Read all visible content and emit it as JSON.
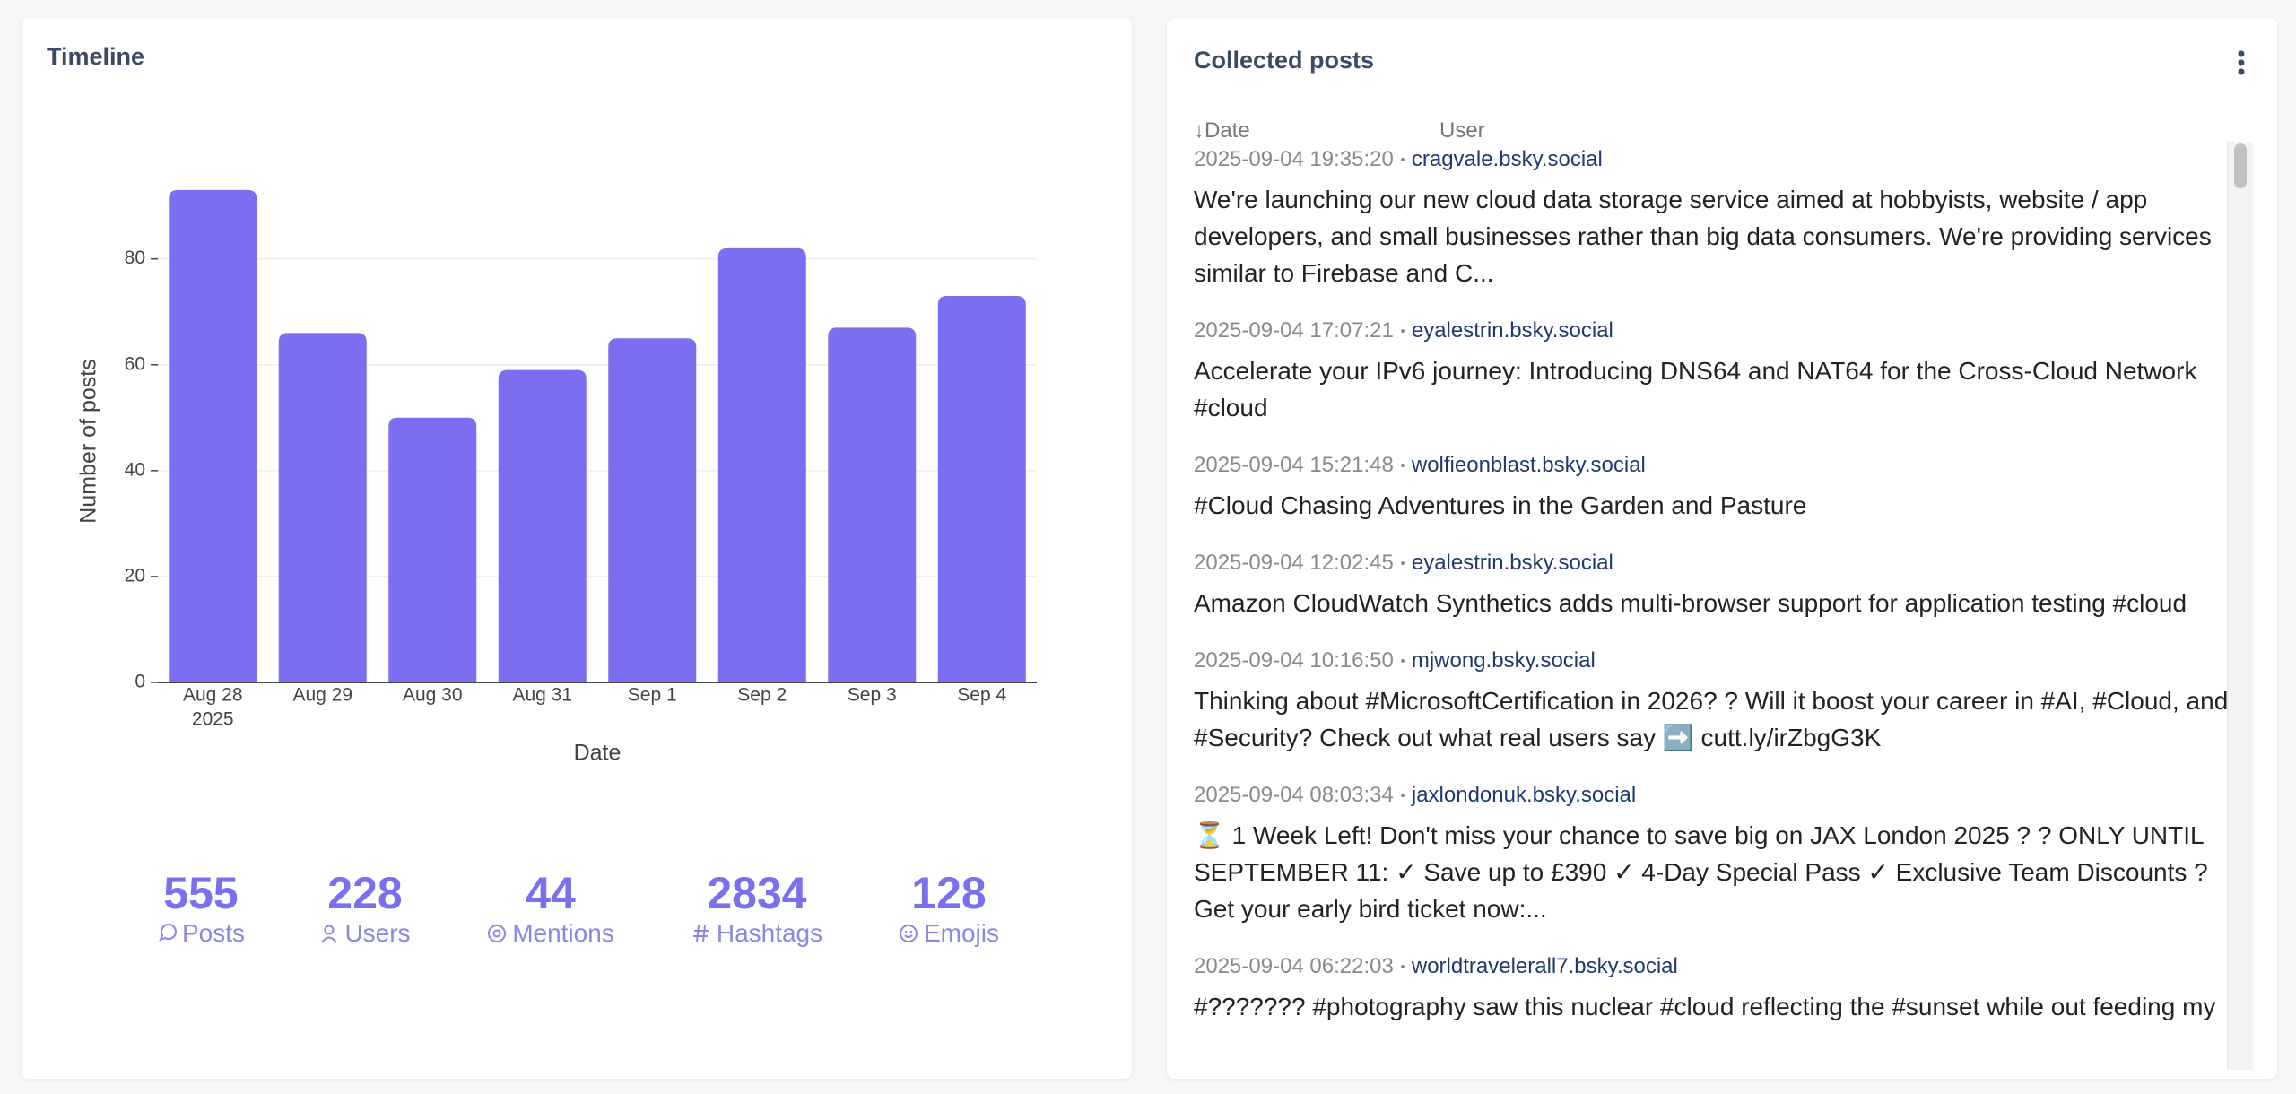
{
  "chart_data": {
    "type": "bar",
    "title": "Timeline",
    "x_label": "Date",
    "y_label": "Number of posts",
    "categories": [
      "Aug 28",
      "Aug 29",
      "Aug 30",
      "Aug 31",
      "Sep 1",
      "Sep 2",
      "Sep 3",
      "Sep 4"
    ],
    "first_category_year": "2025",
    "values": [
      93,
      66,
      50,
      59,
      65,
      82,
      67,
      73
    ],
    "color": "#7b6ef0",
    "ylim": [
      0,
      97.9
    ],
    "yticks": [
      0,
      20,
      40,
      60,
      80
    ],
    "grid": true
  },
  "stats": [
    {
      "value": "555",
      "label": "Posts"
    },
    {
      "value": "228",
      "label": "Users"
    },
    {
      "value": "44",
      "label": "Mentions"
    },
    {
      "value": "2834",
      "label": "Hashtags"
    },
    {
      "value": "128",
      "label": "Emojis"
    }
  ],
  "posts_panel": {
    "title": "Collected posts",
    "columns": [
      "↓Date",
      "User"
    ],
    "posts": [
      {
        "date": "2025-09-04 19:35:20",
        "user": "cragvale.bsky.social",
        "text": "We're launching our new cloud data storage service aimed at hobbyists, website / app developers, and small businesses rather than big data consumers. We're providing services similar to Firebase and C..."
      },
      {
        "date": "2025-09-04 17:07:21",
        "user": "eyalestrin.bsky.social",
        "text": "Accelerate your IPv6 journey: Introducing DNS64 and NAT64 for the Cross-Cloud Network #cloud"
      },
      {
        "date": "2025-09-04 15:21:48",
        "user": "wolfieonblast.bsky.social",
        "text": "#Cloud Chasing Adventures in the Garden and Pasture"
      },
      {
        "date": "2025-09-04 12:02:45",
        "user": "eyalestrin.bsky.social",
        "text": "Amazon CloudWatch Synthetics adds multi-browser support for application testing #cloud"
      },
      {
        "date": "2025-09-04 10:16:50",
        "user": "mjwong.bsky.social",
        "text": "Thinking about #MicrosoftCertification in 2026? ? Will it boost your career in #AI, #Cloud, and #Security? Check out what real users say ➡️ cutt.ly/irZbgG3K"
      },
      {
        "date": "2025-09-04 08:03:34",
        "user": "jaxlondonuk.bsky.social",
        "text": "⏳ 1 Week Left! Don't miss your chance to save big on JAX London 2025 ? ? ONLY UNTIL SEPTEMBER 11: ✓ Save up to £390 ✓ 4-Day Special Pass ✓ Exclusive Team Discounts ? Get your early bird ticket now:..."
      },
      {
        "date": "2025-09-04 06:22:03",
        "user": "worldtravelerall7.bsky.social",
        "text": "#??????? #photography saw this nuclear #cloud reflecting the #sunset while out feeding my"
      }
    ]
  }
}
